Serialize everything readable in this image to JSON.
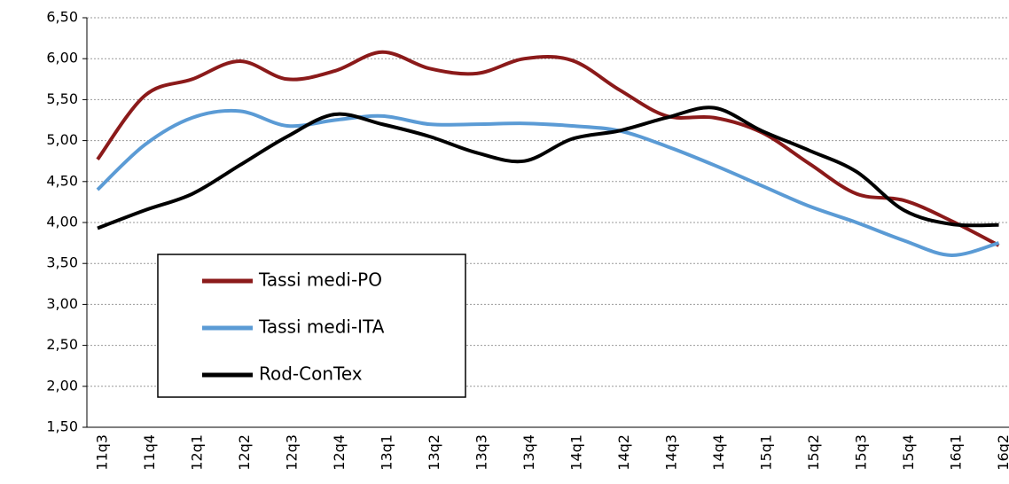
{
  "chart_data": {
    "type": "line",
    "categories": [
      "11q3",
      "11q4",
      "12q1",
      "12q2",
      "12q3",
      "12q4",
      "13q1",
      "13q2",
      "13q3",
      "13q4",
      "14q1",
      "14q2",
      "14q3",
      "14q4",
      "15q1",
      "15q2",
      "15q3",
      "15q4",
      "16q1",
      "16q2"
    ],
    "series": [
      {
        "name": "Tassi medi-PO",
        "color": "#8b1a1a",
        "values": [
          4.77,
          5.55,
          5.75,
          5.97,
          5.75,
          5.85,
          6.08,
          5.88,
          5.82,
          6.0,
          5.98,
          5.62,
          5.3,
          5.28,
          5.1,
          4.72,
          4.35,
          4.27,
          4.02,
          3.72
        ]
      },
      {
        "name": "Tassi medi-ITA",
        "color": "#5b9bd5",
        "values": [
          4.4,
          4.95,
          5.28,
          5.36,
          5.18,
          5.25,
          5.3,
          5.2,
          5.2,
          5.21,
          5.18,
          5.12,
          4.93,
          4.7,
          4.45,
          4.2,
          4.0,
          3.78,
          3.6,
          3.75
        ]
      },
      {
        "name": "Rod-ConTex",
        "color": "#000000",
        "values": [
          3.93,
          4.15,
          4.35,
          4.7,
          5.05,
          5.32,
          5.2,
          5.05,
          4.85,
          4.75,
          5.02,
          5.12,
          5.28,
          5.4,
          5.12,
          4.88,
          4.62,
          4.15,
          3.98,
          3.97
        ]
      }
    ],
    "ylim": [
      1.5,
      6.5
    ],
    "yticks": [
      {
        "value": 1.5,
        "label": "1,50"
      },
      {
        "value": 2,
        "label": "2,00"
      },
      {
        "value": 2.5,
        "label": "2,50"
      },
      {
        "value": 3,
        "label": "3,00"
      },
      {
        "value": 3.5,
        "label": "3,50"
      },
      {
        "value": 4,
        "label": "4,00"
      },
      {
        "value": 4.5,
        "label": "4,50"
      },
      {
        "value": 5,
        "label": "5,00"
      },
      {
        "value": 5.5,
        "label": "5,50"
      },
      {
        "value": 6,
        "label": "6,00"
      },
      {
        "value": 6.5,
        "label": "6,50"
      }
    ],
    "grid": true
  }
}
